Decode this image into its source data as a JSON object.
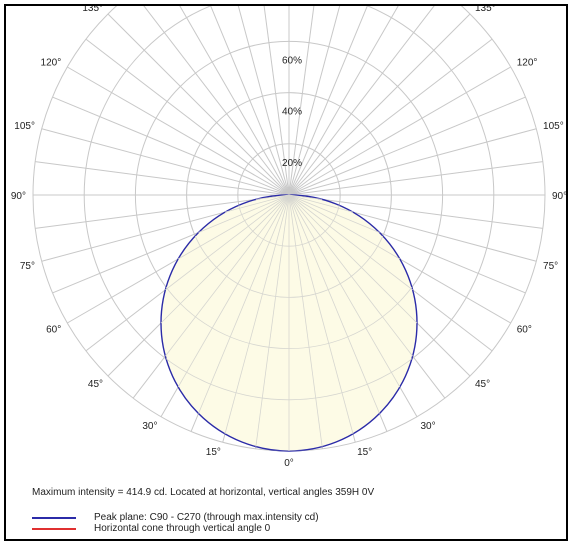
{
  "chart_data": {
    "type": "polar",
    "radial_ticks": [
      "20%",
      "40%",
      "60%"
    ],
    "radial_max_percent": 100,
    "radial_grid_percent": [
      20,
      40,
      60,
      80,
      100
    ],
    "spoke_step_deg": 7.5,
    "angle_labels": {
      "left": [
        "0°",
        "15°",
        "30°",
        "45°",
        "60°",
        "75°",
        "90°",
        "105°",
        "120°",
        "135°"
      ],
      "right": [
        "0°",
        "15°",
        "30°",
        "45°",
        "60°",
        "75°",
        "90°",
        "105°",
        "120°",
        "135°"
      ]
    },
    "angle_label_values": [
      0,
      15,
      30,
      45,
      60,
      75,
      90,
      105,
      120,
      135
    ],
    "series": [
      {
        "name": "Peak plane: C90 - C270 (through max.intensity cd)",
        "color": "#2b2ba8",
        "fill": "#fdfbe6",
        "distribution": "cosine",
        "peak_percent": 100,
        "peak_angle_deg": 0
      },
      {
        "name": "Horizontal cone through vertical angle 0",
        "color": "#e03030",
        "distribution": "point",
        "peak_percent": 0
      }
    ],
    "max_intensity_text": "Maximum intensity = 414.9 cd. Located at horizontal, vertical angles 359H 0V",
    "grid": true,
    "legend_position": "bottom-left"
  }
}
